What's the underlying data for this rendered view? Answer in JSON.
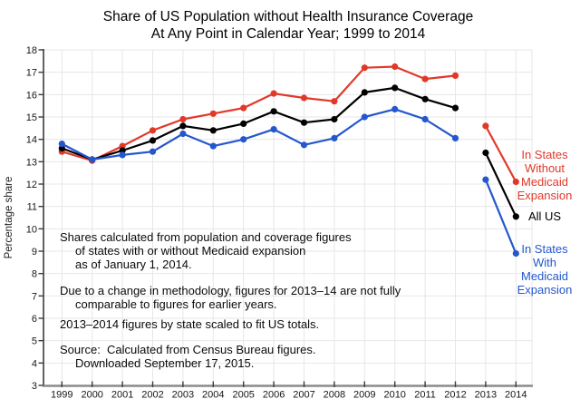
{
  "title": {
    "line1": "Share of US Population without Health Insurance Coverage",
    "line2": "At Any Point in Calendar Year; 1999 to 2014"
  },
  "chart_data": {
    "type": "line",
    "title": "Share of US Population without Health Insurance Coverage At Any Point in Calendar Year; 1999 to 2014",
    "xlabel": "",
    "ylabel": "Percentage share",
    "ylim": [
      3,
      18
    ],
    "y_ticks": [
      3,
      4,
      5,
      6,
      7,
      8,
      9,
      10,
      11,
      12,
      13,
      14,
      15,
      16,
      17,
      18
    ],
    "x_ticks": [
      1999,
      2000,
      2001,
      2002,
      2003,
      2004,
      2005,
      2006,
      2007,
      2008,
      2009,
      2010,
      2011,
      2012,
      2013,
      2014
    ],
    "grid": true,
    "legend_position": "right",
    "series_break_note": "Lines are broken between 2012 and 2013 because 2013-14 figures are not fully comparable to earlier years",
    "x_main": [
      1999,
      2000,
      2001,
      2002,
      2003,
      2004,
      2005,
      2006,
      2007,
      2008,
      2009,
      2010,
      2011,
      2012
    ],
    "x_recent": [
      2013,
      2014
    ],
    "series": [
      {
        "name": "In States Without Medicaid Expansion",
        "legend_lines": [
          "In States",
          "Without",
          "Medicaid",
          "Expansion"
        ],
        "color": "#e0392a",
        "values_main": [
          13.45,
          13.05,
          13.7,
          14.4,
          14.9,
          15.15,
          15.4,
          16.05,
          15.85,
          15.7,
          17.2,
          17.25,
          16.7,
          16.85
        ],
        "values_recent": [
          14.6,
          12.1
        ]
      },
      {
        "name": "All US",
        "legend_lines": [
          "All US"
        ],
        "color": "#000000",
        "values_main": [
          13.6,
          13.1,
          13.5,
          13.95,
          14.6,
          14.4,
          14.7,
          15.25,
          14.75,
          14.9,
          16.1,
          16.3,
          15.8,
          15.4
        ],
        "values_recent": [
          13.4,
          10.55
        ]
      },
      {
        "name": "In States With Medicaid Expansion",
        "legend_lines": [
          "In States",
          "With",
          "Medicaid",
          "Expansion"
        ],
        "color": "#2457cd",
        "values_main": [
          13.8,
          13.1,
          13.3,
          13.45,
          14.25,
          13.7,
          14.0,
          14.45,
          13.75,
          14.05,
          15.0,
          15.35,
          14.9,
          14.05
        ],
        "values_recent": [
          12.2,
          8.9
        ]
      }
    ]
  },
  "annotations": {
    "paragraphs": [
      {
        "lines": [
          "Shares calculated from population and coverage figures",
          "of states with or without Medicaid expansion",
          "as of January 1, 2014."
        ]
      },
      {
        "lines": [
          "Due to a change in methodology, figures for 2013–14 are not fully",
          "comparable to figures for earlier years."
        ]
      },
      {
        "lines": [
          "2013–2014 figures by state scaled to fit US totals."
        ]
      },
      {
        "lines": [
          "Source:  Calculated from Census Bureau figures.",
          "Downloaded September 17, 2015."
        ]
      }
    ]
  }
}
